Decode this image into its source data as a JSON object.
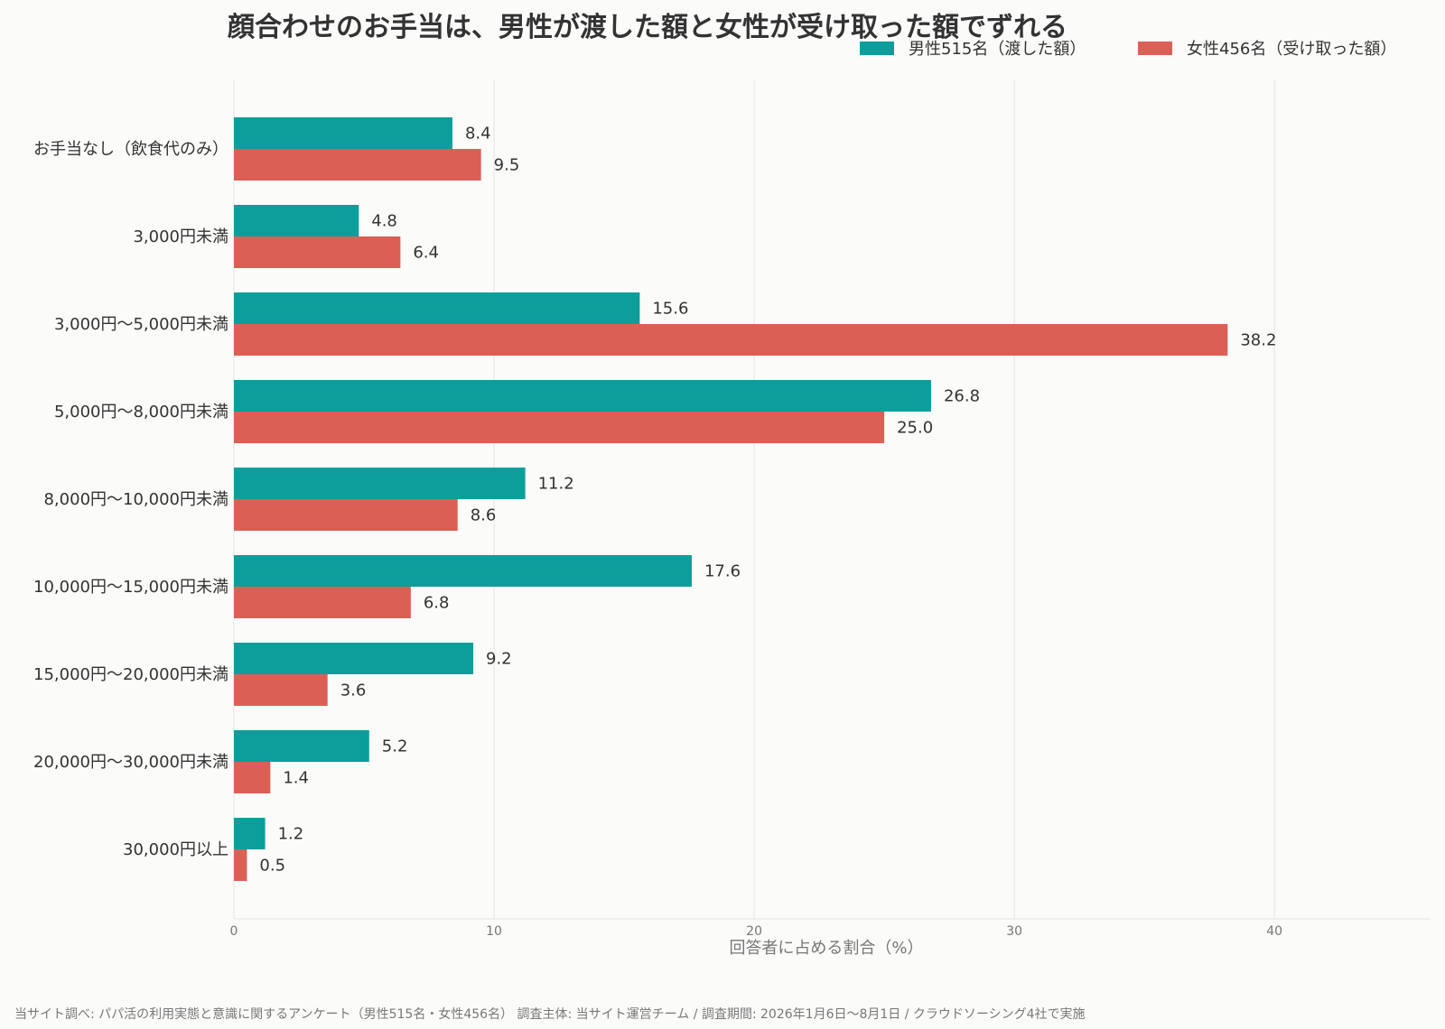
{
  "chart_data": {
    "type": "bar",
    "orientation": "horizontal",
    "title": "顔合わせのお手当は、男性が渡した額と女性が受け取った額でずれる",
    "xlabel": "回答者に占める割合（%）",
    "ylabel": "",
    "xlim": [
      0,
      46
    ],
    "xticks": [
      0,
      10,
      20,
      30,
      40
    ],
    "grid": true,
    "legend_position": "top-right",
    "categories": [
      "お手当なし（飲食代のみ）",
      "3,000円未満",
      "3,000円〜5,000円未満",
      "5,000円〜8,000円未満",
      "8,000円〜10,000円未満",
      "10,000円〜15,000円未満",
      "15,000円〜20,000円未満",
      "20,000円〜30,000円未満",
      "30,000円以上"
    ],
    "series": [
      {
        "name": "男性515名（渡した額）",
        "color": "#0b9e9a",
        "values": [
          8.4,
          4.8,
          15.6,
          26.8,
          11.2,
          17.6,
          9.2,
          5.2,
          1.2
        ],
        "labels": [
          "8.4",
          "4.8",
          "15.6",
          "26.8",
          "11.2",
          "17.6",
          "9.2",
          "5.2",
          "1.2"
        ]
      },
      {
        "name": "女性456名（受け取った額）",
        "color": "#dc5f56",
        "values": [
          9.5,
          6.4,
          38.2,
          25.0,
          8.6,
          6.8,
          3.6,
          1.4,
          0.5
        ],
        "labels": [
          "9.5",
          "6.4",
          "38.2",
          "25.0",
          "8.6",
          "6.8",
          "3.6",
          "1.4",
          "0.5"
        ]
      }
    ],
    "source": "当サイト調べ: パパ活の利用実態と意識に関するアンケート（男性515名・女性456名） 調査主体: 当サイト運営チーム / 調査期間: 2026年1月6日〜8月1日 / クラウドソーシング4社で実施"
  }
}
